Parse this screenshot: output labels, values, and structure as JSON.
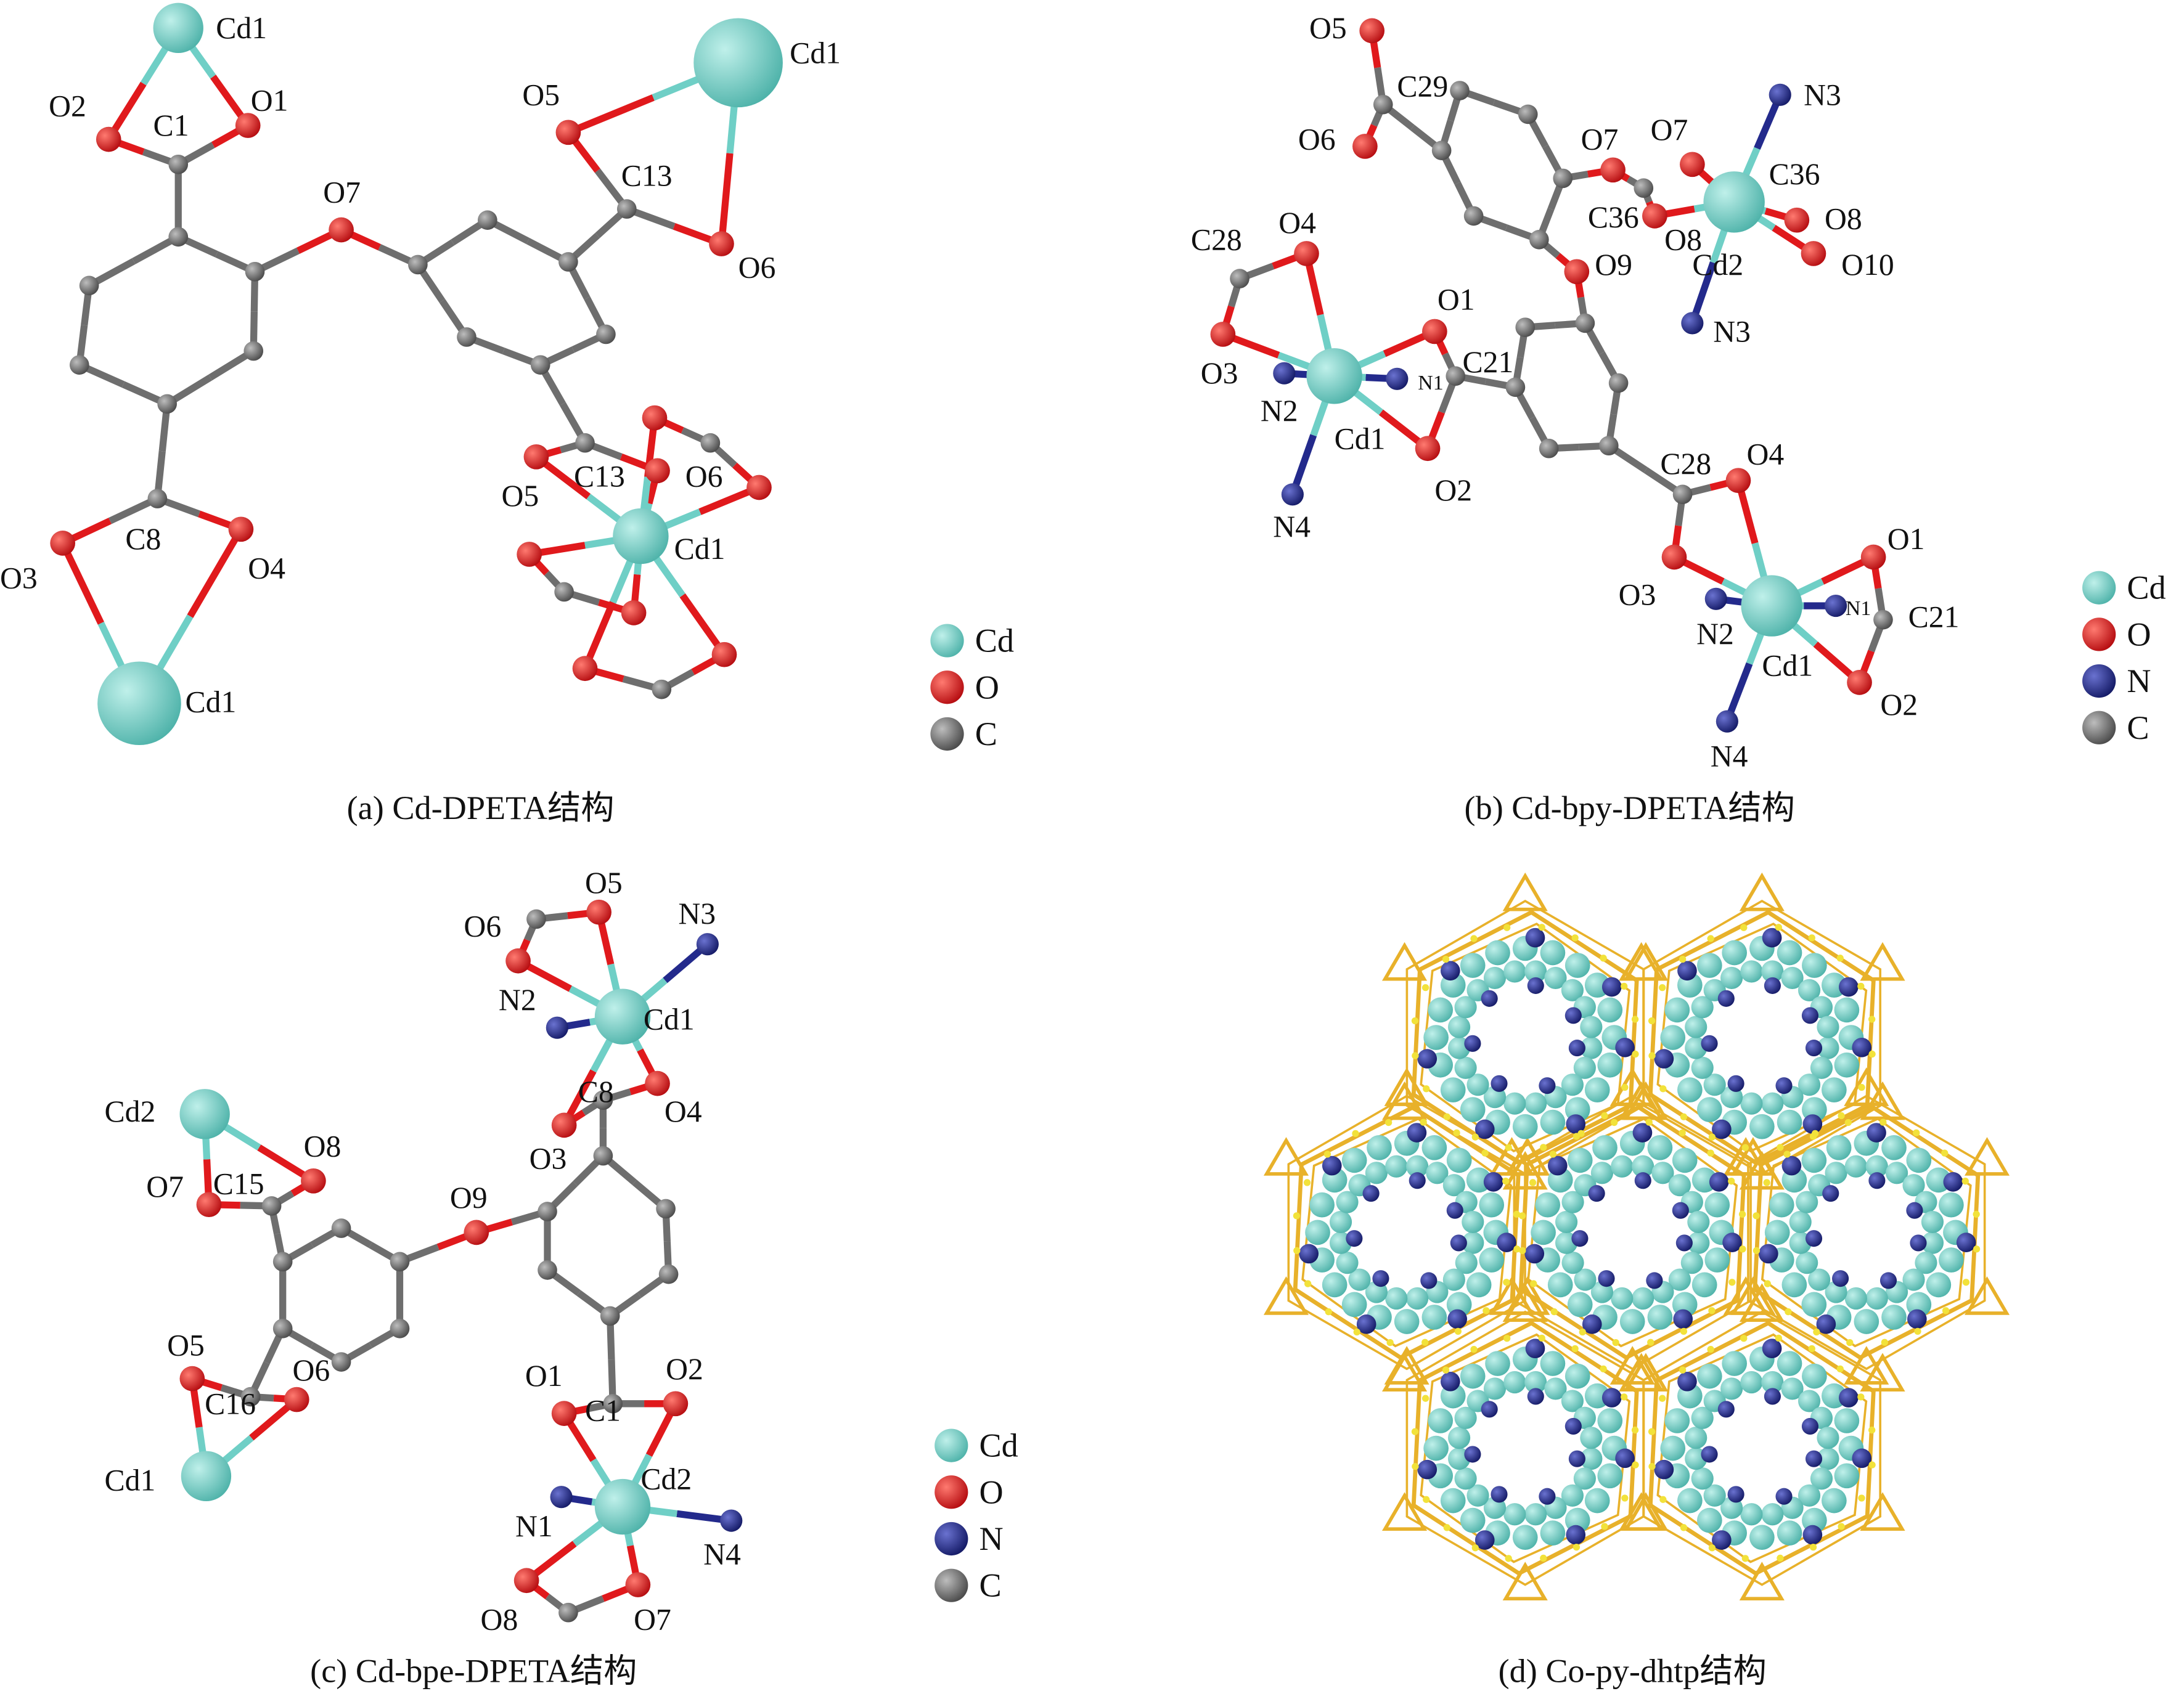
{
  "colors": {
    "Cd": "#6fcfc6",
    "O": "#e0191c",
    "N": "#232a8c",
    "C": "#6e6e6e",
    "framework": "#e8b12a"
  },
  "panels": [
    {
      "id": "a",
      "caption": "(a) Cd-DPETA结构",
      "legend": [
        "Cd",
        "O",
        "C"
      ],
      "labels": [
        "Cd1",
        "O2",
        "O1",
        "C1",
        "O7",
        "C13",
        "O5",
        "O6",
        "Cd1",
        "O3",
        "C8",
        "O4",
        "Cd1",
        "C13",
        "O6",
        "O5",
        "Cd1"
      ]
    },
    {
      "id": "b",
      "caption": "(b) Cd-bpy-DPETA结构",
      "legend": [
        "Cd",
        "O",
        "N",
        "C"
      ],
      "labels": [
        "O5",
        "C29",
        "O6",
        "O7",
        "O7",
        "C36",
        "C36",
        "O8",
        "O8",
        "Cd2",
        "O10",
        "N3",
        "N3",
        "O9",
        "C28",
        "O4",
        "O1",
        "C21",
        "N1",
        "O3",
        "N2",
        "Cd1",
        "O2",
        "N4",
        "C28",
        "O4",
        "O1",
        "O3",
        "N2",
        "N1",
        "C21",
        "Cd1",
        "O2",
        "N4"
      ]
    },
    {
      "id": "c",
      "caption": "(c) Cd-bpe-DPETA结构",
      "legend": [
        "Cd",
        "O",
        "N",
        "C"
      ],
      "labels": [
        "O5",
        "O6",
        "N3",
        "N2",
        "Cd1",
        "C8",
        "O4",
        "O3",
        "Cd2",
        "O8",
        "O7",
        "C15",
        "O9",
        "O5",
        "O6",
        "C16",
        "Cd1",
        "O1",
        "C1",
        "O2",
        "Cd2",
        "N1",
        "N4",
        "O8",
        "O7"
      ]
    },
    {
      "id": "d",
      "caption": "(d) Co-py-dhtp结构"
    }
  ]
}
